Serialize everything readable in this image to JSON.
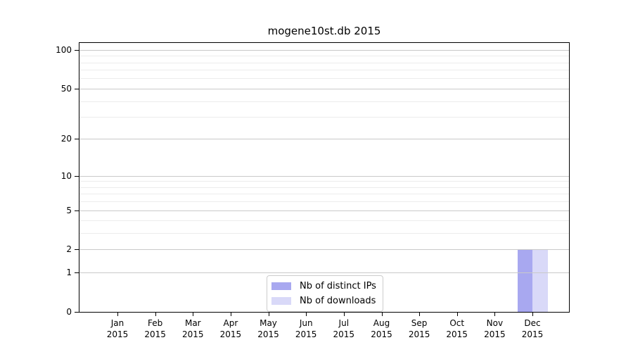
{
  "chart_data": {
    "type": "bar",
    "title": "mogene10st.db 2015",
    "categories": [
      "Jan 2015",
      "Feb 2015",
      "Mar 2015",
      "Apr 2015",
      "May 2015",
      "Jun 2015",
      "Jul 2015",
      "Aug 2015",
      "Sep 2015",
      "Oct 2015",
      "Nov 2015",
      "Dec 2015"
    ],
    "series": [
      {
        "name": "Nb of distinct IPs",
        "color": "#a8a8f0",
        "values": [
          0,
          0,
          0,
          0,
          0,
          0,
          0,
          0,
          0,
          0,
          0,
          2
        ]
      },
      {
        "name": "Nb of downloads",
        "color": "#d9d9f8",
        "values": [
          0,
          0,
          0,
          0,
          0,
          0,
          0,
          0,
          0,
          0,
          0,
          2
        ]
      }
    ],
    "yscale": "log1p",
    "yticks": [
      0,
      1,
      2,
      5,
      10,
      20,
      50,
      100
    ],
    "minor_yticks": [
      3,
      4,
      6,
      7,
      8,
      9,
      30,
      40,
      60,
      70,
      80,
      90
    ],
    "ylim": [
      0,
      113
    ],
    "xlabel": "",
    "ylabel": "",
    "grid": true,
    "legend_position": "lower center"
  }
}
